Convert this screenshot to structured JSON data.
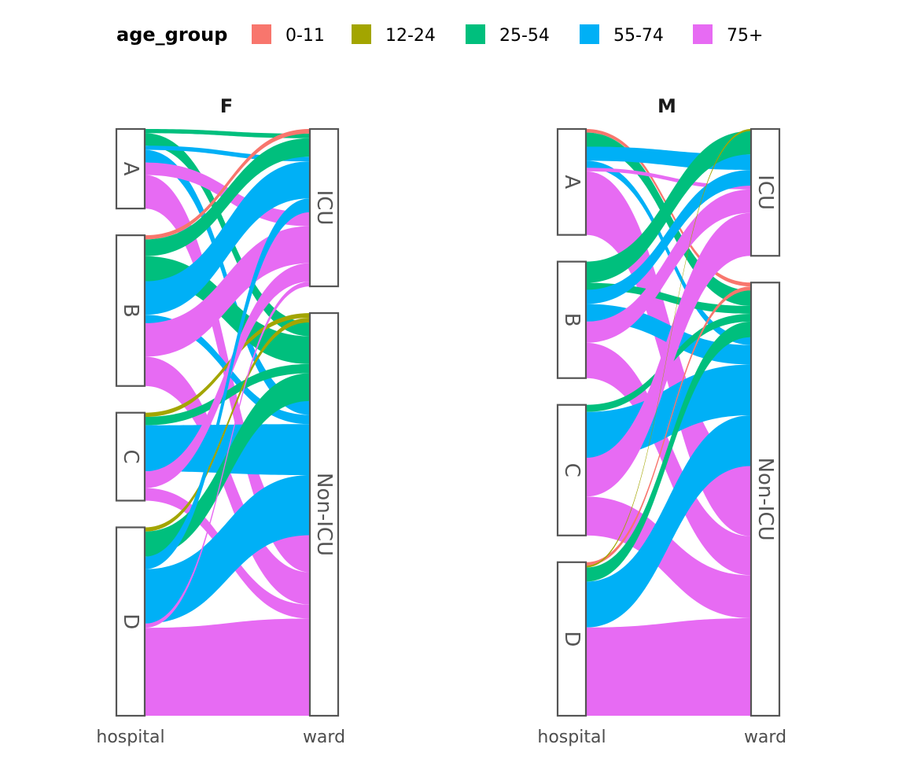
{
  "legend": {
    "title": "age_group",
    "items": [
      {
        "label": "0-11",
        "color": "#F8766D"
      },
      {
        "label": "12-24",
        "color": "#A3A500"
      },
      {
        "label": "25-54",
        "color": "#00BF7D"
      },
      {
        "label": "55-74",
        "color": "#00B0F6"
      },
      {
        "label": "75+",
        "color": "#E76BF3"
      }
    ]
  },
  "chart_data": [
    {
      "type": "alluvial",
      "panel": "F",
      "axes": [
        "hospital",
        "ward"
      ],
      "hospital_strata": [
        "A",
        "B",
        "C",
        "D"
      ],
      "ward_strata": [
        "ICU",
        "Non-ICU"
      ],
      "flows": [
        {
          "hospital": "A",
          "age_group": "25-54",
          "ward": "ICU",
          "value": 1
        },
        {
          "hospital": "A",
          "age_group": "25-54",
          "ward": "Non-ICU",
          "value": 3
        },
        {
          "hospital": "A",
          "age_group": "55-74",
          "ward": "ICU",
          "value": 1
        },
        {
          "hospital": "A",
          "age_group": "55-74",
          "ward": "Non-ICU",
          "value": 3
        },
        {
          "hospital": "A",
          "age_group": "75+",
          "ward": "ICU",
          "value": 3
        },
        {
          "hospital": "A",
          "age_group": "75+",
          "ward": "Non-ICU",
          "value": 8
        },
        {
          "hospital": "B",
          "age_group": "0-11",
          "ward": "ICU",
          "value": 1
        },
        {
          "hospital": "B",
          "age_group": "25-54",
          "ward": "ICU",
          "value": 4
        },
        {
          "hospital": "B",
          "age_group": "25-54",
          "ward": "Non-ICU",
          "value": 6
        },
        {
          "hospital": "B",
          "age_group": "55-74",
          "ward": "ICU",
          "value": 8
        },
        {
          "hospital": "B",
          "age_group": "55-74",
          "ward": "Non-ICU",
          "value": 2
        },
        {
          "hospital": "B",
          "age_group": "75+",
          "ward": "ICU",
          "value": 8
        },
        {
          "hospital": "B",
          "age_group": "75+",
          "ward": "Non-ICU",
          "value": 7
        },
        {
          "hospital": "C",
          "age_group": "12-24",
          "ward": "Non-ICU",
          "value": 1
        },
        {
          "hospital": "C",
          "age_group": "25-54",
          "ward": "Non-ICU",
          "value": 2
        },
        {
          "hospital": "C",
          "age_group": "55-74",
          "ward": "Non-ICU",
          "value": 11
        },
        {
          "hospital": "C",
          "age_group": "75+",
          "ward": "ICU",
          "value": 4
        },
        {
          "hospital": "C",
          "age_group": "75+",
          "ward": "Non-ICU",
          "value": 3
        },
        {
          "hospital": "D",
          "age_group": "12-24",
          "ward": "Non-ICU",
          "value": 1
        },
        {
          "hospital": "D",
          "age_group": "25-54",
          "ward": "Non-ICU",
          "value": 6
        },
        {
          "hospital": "D",
          "age_group": "55-74",
          "ward": "ICU",
          "value": 3
        },
        {
          "hospital": "D",
          "age_group": "55-74",
          "ward": "Non-ICU",
          "value": 13
        },
        {
          "hospital": "D",
          "age_group": "75+",
          "ward": "ICU",
          "value": 1
        },
        {
          "hospital": "D",
          "age_group": "75+",
          "ward": "Non-ICU",
          "value": 21
        }
      ]
    },
    {
      "type": "alluvial",
      "panel": "M",
      "axes": [
        "hospital",
        "ward"
      ],
      "hospital_strata": [
        "A",
        "B",
        "C",
        "D"
      ],
      "ward_strata": [
        "ICU",
        "Non-ICU"
      ],
      "flows": [
        {
          "hospital": "A",
          "age_group": "0-11",
          "ward": "Non-ICU",
          "value": 1
        },
        {
          "hospital": "A",
          "age_group": "25-54",
          "ward": "Non-ICU",
          "value": 4
        },
        {
          "hospital": "A",
          "age_group": "55-74",
          "ward": "ICU",
          "value": 4
        },
        {
          "hospital": "A",
          "age_group": "55-74",
          "ward": "Non-ICU",
          "value": 2
        },
        {
          "hospital": "A",
          "age_group": "75+",
          "ward": "ICU",
          "value": 1
        },
        {
          "hospital": "A",
          "age_group": "75+",
          "ward": "Non-ICU",
          "value": 18
        },
        {
          "hospital": "B",
          "age_group": "25-54",
          "ward": "ICU",
          "value": 6
        },
        {
          "hospital": "B",
          "age_group": "25-54",
          "ward": "Non-ICU",
          "value": 2
        },
        {
          "hospital": "B",
          "age_group": "55-74",
          "ward": "ICU",
          "value": 4
        },
        {
          "hospital": "B",
          "age_group": "55-74",
          "ward": "Non-ICU",
          "value": 5
        },
        {
          "hospital": "B",
          "age_group": "75+",
          "ward": "ICU",
          "value": 6
        },
        {
          "hospital": "B",
          "age_group": "75+",
          "ward": "Non-ICU",
          "value": 10
        },
        {
          "hospital": "C",
          "age_group": "25-54",
          "ward": "Non-ICU",
          "value": 2
        },
        {
          "hospital": "C",
          "age_group": "55-74",
          "ward": "Non-ICU",
          "value": 13
        },
        {
          "hospital": "C",
          "age_group": "75+",
          "ward": "ICU",
          "value": 11
        },
        {
          "hospital": "C",
          "age_group": "75+",
          "ward": "Non-ICU",
          "value": 11
        },
        {
          "hospital": "D",
          "age_group": "0-11",
          "ward": "Non-ICU",
          "value": 1
        },
        {
          "hospital": "D",
          "age_group": "12-24",
          "ward": "ICU",
          "value": 0.5
        },
        {
          "hospital": "D",
          "age_group": "25-54",
          "ward": "Non-ICU",
          "value": 4
        },
        {
          "hospital": "D",
          "age_group": "55-74",
          "ward": "Non-ICU",
          "value": 13
        },
        {
          "hospital": "D",
          "age_group": "75+",
          "ward": "Non-ICU",
          "value": 25
        }
      ]
    }
  ]
}
